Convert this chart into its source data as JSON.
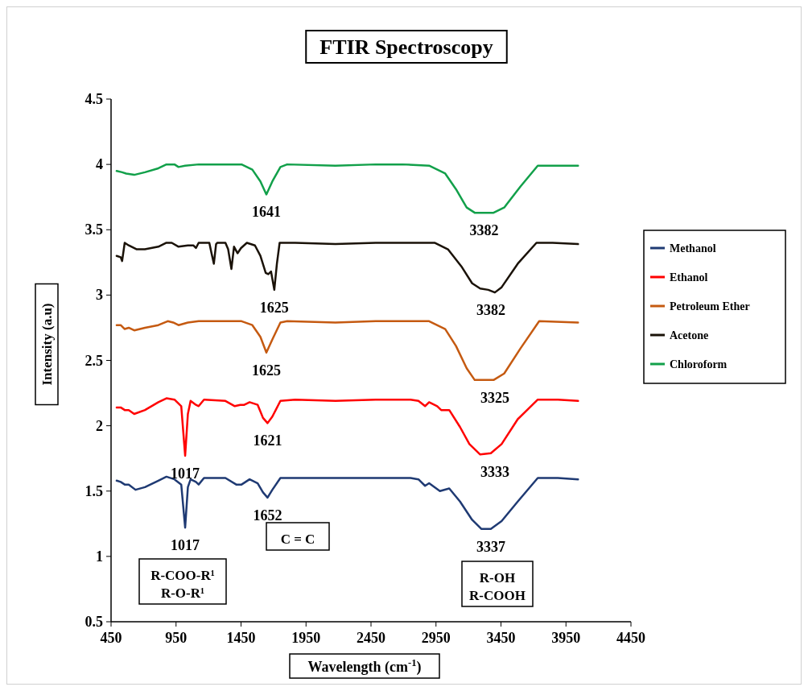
{
  "chart_data": {
    "type": "line",
    "title": "FTIR Spectroscopy",
    "xlabel": "Wavelength (cm$^{-1}$)",
    "ylabel": "Intensity (a.u)",
    "xlim": [
      450,
      4450
    ],
    "xticks": [
      450,
      950,
      1450,
      1950,
      2450,
      2950,
      3450,
      3950,
      4450
    ],
    "ylim": [
      0.5,
      4.5
    ],
    "yticks": [
      0.5,
      1,
      1.5,
      2,
      2.5,
      3,
      3.5,
      4,
      4.5
    ],
    "grid": false,
    "legend": "right",
    "marker": "none",
    "line_style": "solid",
    "series": [
      {
        "name": "Methanol",
        "color": "#1f3a73",
        "x": [
          493,
          524,
          555,
          586,
          638,
          711,
          814,
          876,
          938,
          990,
          1020,
          1041,
          1062,
          1103,
          1124,
          1165,
          1330,
          1413,
          1454,
          1516,
          1578,
          1619,
          1654,
          1691,
          1753,
          1867,
          2176,
          2486,
          2691,
          2754,
          2815,
          2866,
          2897,
          2980,
          3052,
          3135,
          3228,
          3300,
          3372,
          3455,
          3579,
          3733,
          3888,
          4043
        ],
        "values": [
          1.58,
          1.57,
          1.55,
          1.55,
          1.51,
          1.53,
          1.58,
          1.61,
          1.59,
          1.55,
          1.22,
          1.53,
          1.59,
          1.57,
          1.55,
          1.6,
          1.6,
          1.55,
          1.55,
          1.59,
          1.56,
          1.49,
          1.45,
          1.51,
          1.6,
          1.6,
          1.6,
          1.6,
          1.6,
          1.6,
          1.59,
          1.54,
          1.56,
          1.5,
          1.52,
          1.42,
          1.28,
          1.21,
          1.21,
          1.27,
          1.42,
          1.6,
          1.6,
          1.59
        ]
      },
      {
        "name": "Ethanol",
        "color": "#ff0000",
        "x": [
          493,
          524,
          555,
          586,
          628,
          711,
          814,
          876,
          938,
          990,
          1020,
          1041,
          1062,
          1103,
          1124,
          1165,
          1330,
          1402,
          1444,
          1475,
          1516,
          1578,
          1619,
          1654,
          1691,
          1753,
          1867,
          2176,
          2486,
          2691,
          2754,
          2815,
          2866,
          2897,
          2959,
          2990,
          3052,
          3135,
          3207,
          3290,
          3372,
          3455,
          3579,
          3733,
          3888,
          4043
        ],
        "values": [
          2.14,
          2.14,
          2.12,
          2.12,
          2.09,
          2.12,
          2.18,
          2.21,
          2.2,
          2.15,
          1.77,
          2.09,
          2.19,
          2.16,
          2.15,
          2.2,
          2.19,
          2.15,
          2.16,
          2.16,
          2.18,
          2.16,
          2.06,
          2.02,
          2.07,
          2.19,
          2.2,
          2.19,
          2.2,
          2.2,
          2.2,
          2.19,
          2.15,
          2.18,
          2.15,
          2.12,
          2.12,
          1.99,
          1.86,
          1.78,
          1.79,
          1.86,
          2.05,
          2.2,
          2.2,
          2.19
        ]
      },
      {
        "name": "Petroleum Ether",
        "color": "#c55a11",
        "x": [
          493,
          524,
          555,
          586,
          628,
          711,
          814,
          886,
          928,
          969,
          1041,
          1124,
          1454,
          1537,
          1599,
          1645,
          1691,
          1753,
          1805,
          2176,
          2486,
          2691,
          2897,
          3021,
          3104,
          3186,
          3248,
          3393,
          3475,
          3599,
          3744,
          4043
        ],
        "values": [
          2.77,
          2.77,
          2.74,
          2.75,
          2.73,
          2.75,
          2.77,
          2.8,
          2.79,
          2.77,
          2.79,
          2.8,
          2.8,
          2.77,
          2.68,
          2.56,
          2.66,
          2.79,
          2.8,
          2.79,
          2.8,
          2.8,
          2.8,
          2.74,
          2.61,
          2.44,
          2.35,
          2.35,
          2.4,
          2.59,
          2.8,
          2.79
        ]
      },
      {
        "name": "Acetone",
        "color": "#1a1208",
        "x": [
          493,
          524,
          535,
          555,
          586,
          648,
          710,
          814,
          876,
          917,
          969,
          1041,
          1083,
          1103,
          1124,
          1206,
          1223,
          1241,
          1258,
          1268,
          1330,
          1351,
          1376,
          1396,
          1423,
          1450,
          1495,
          1557,
          1599,
          1640,
          1660,
          1681,
          1706,
          1726,
          1747,
          1867,
          2176,
          2486,
          2691,
          2939,
          3042,
          3145,
          3228,
          3290,
          3352,
          3403,
          3455,
          3579,
          3723,
          3847,
          4043
        ],
        "values": [
          3.3,
          3.29,
          3.26,
          3.4,
          3.38,
          3.35,
          3.35,
          3.37,
          3.4,
          3.4,
          3.37,
          3.38,
          3.38,
          3.36,
          3.4,
          3.4,
          3.32,
          3.24,
          3.39,
          3.4,
          3.4,
          3.35,
          3.2,
          3.37,
          3.32,
          3.36,
          3.4,
          3.38,
          3.3,
          3.17,
          3.16,
          3.18,
          3.04,
          3.24,
          3.4,
          3.4,
          3.39,
          3.4,
          3.4,
          3.4,
          3.35,
          3.22,
          3.09,
          3.05,
          3.04,
          3.02,
          3.06,
          3.24,
          3.4,
          3.4,
          3.39
        ]
      },
      {
        "name": "Chloroform",
        "color": "#12a04a",
        "x": [
          493,
          535,
          566,
          628,
          711,
          814,
          876,
          938,
          969,
          1020,
          1124,
          1454,
          1537,
          1599,
          1645,
          1691,
          1753,
          1805,
          2176,
          2486,
          2691,
          2897,
          3021,
          3104,
          3186,
          3248,
          3393,
          3475,
          3599,
          3733,
          4043
        ],
        "values": [
          3.95,
          3.94,
          3.93,
          3.92,
          3.94,
          3.97,
          4.0,
          4.0,
          3.98,
          3.99,
          4.0,
          4.0,
          3.96,
          3.87,
          3.77,
          3.87,
          3.98,
          4.0,
          3.99,
          4.0,
          4.0,
          3.99,
          3.93,
          3.81,
          3.67,
          3.63,
          3.63,
          3.67,
          3.83,
          3.99,
          3.99
        ]
      }
    ],
    "annotations": [
      {
        "text": "1641",
        "x": 1645,
        "y": 3.77
      },
      {
        "text": "3382",
        "x": 3320,
        "y": 3.63
      },
      {
        "text": "1625",
        "x": 1706,
        "y": 3.04
      },
      {
        "text": "3382",
        "x": 3372,
        "y": 3.02
      },
      {
        "text": "1625",
        "x": 1645,
        "y": 2.56
      },
      {
        "text": "3325",
        "x": 3403,
        "y": 2.35
      },
      {
        "text": "1621",
        "x": 1654,
        "y": 2.02
      },
      {
        "text": "1017",
        "x": 1020,
        "y": 1.77
      },
      {
        "text": "3333",
        "x": 3403,
        "y": 1.78
      },
      {
        "text": "1652",
        "x": 1654,
        "y": 1.45
      },
      {
        "text": "1017",
        "x": 1020,
        "y": 1.22
      },
      {
        "text": "3337",
        "x": 3372,
        "y": 1.21
      },
      "C = C",
      "R-COO-R¹\nR-O-R¹",
      "R-OH\nR-COOH"
    ]
  }
}
